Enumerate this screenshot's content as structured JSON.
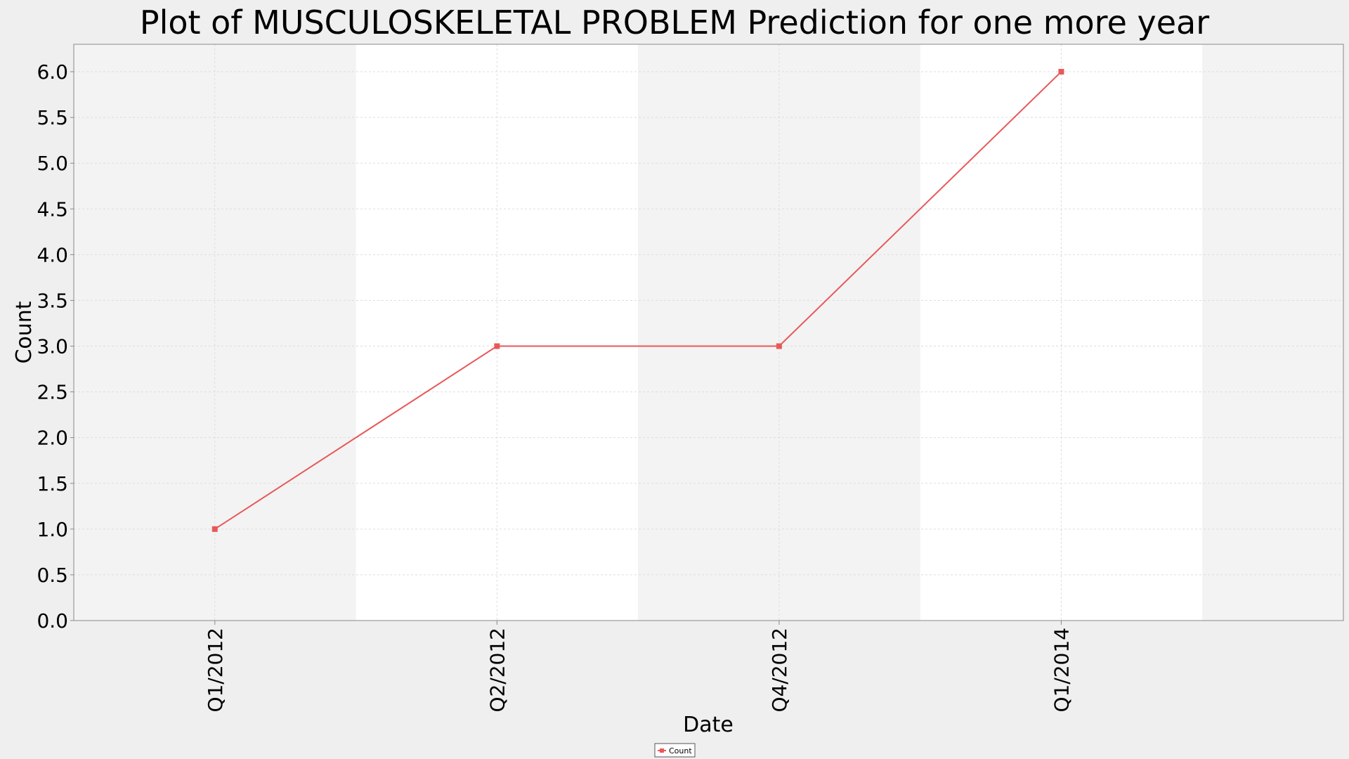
{
  "chart_data": {
    "type": "line",
    "title": "Plot of MUSCULOSKELETAL PROBLEM Prediction for one more year",
    "xlabel": "Date",
    "ylabel": "Count",
    "categories": [
      "Q1/2012",
      "Q2/2012",
      "Q4/2012",
      "Q1/2014"
    ],
    "series": [
      {
        "name": "Count",
        "values": [
          1,
          3,
          3,
          6
        ],
        "color": "#e8585a"
      }
    ],
    "ylim": [
      0,
      6.0
    ],
    "yticks": [
      "0.0",
      "0.5",
      "1.0",
      "1.5",
      "2.0",
      "2.5",
      "3.0",
      "3.5",
      "4.0",
      "4.5",
      "5.0",
      "5.5",
      "6.0"
    ],
    "grid": true,
    "legend_position": "bottom-center",
    "colors": {
      "background": "#efefef",
      "band_shaded": "#f3f3f3",
      "band_plain": "#ffffff",
      "grid": "#dddddd"
    }
  }
}
